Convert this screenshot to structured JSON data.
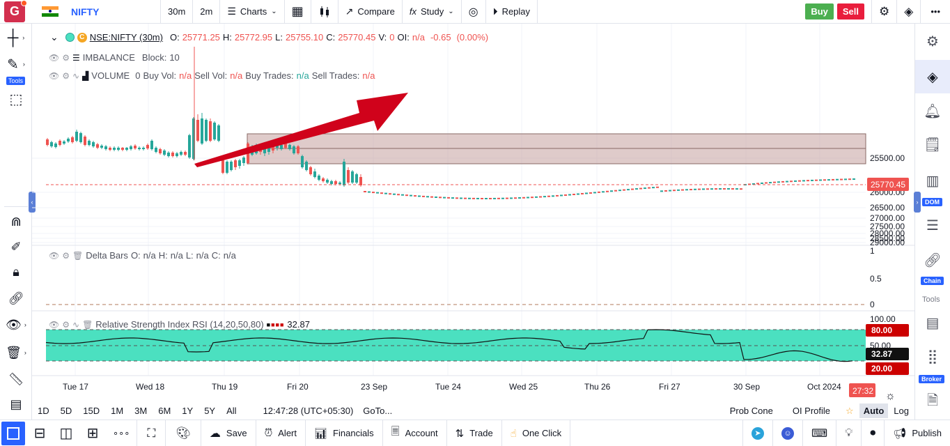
{
  "topbar": {
    "logo": "G",
    "symbol": "NIFTY",
    "interval": "30m",
    "interval2": "2m",
    "charts": "Charts",
    "compare": "Compare",
    "study": "Study",
    "replay": "Replay",
    "buy": "Buy",
    "sell": "Sell",
    "study_prefix": "fx"
  },
  "legend": {
    "symbol": "NSE:NIFTY (30m)",
    "o_label": "O:",
    "o": "25771.25",
    "h_label": "H:",
    "h": "25772.95",
    "l_label": "L:",
    "l": "25755.10",
    "c_label": "C:",
    "c": "25770.45",
    "v_label": "V:",
    "v": "0",
    "oi_label": "OI:",
    "oi": "n/a",
    "change": "-0.65",
    "change_pct": "(0.00%)"
  },
  "indicators": {
    "imbalance": "IMBALANCE",
    "block_label": "Block:",
    "block": "10",
    "volume": "VOLUME",
    "volume_val": "0",
    "buy_vol_label": "Buy Vol:",
    "buy_vol": "n/a",
    "sell_vol_label": "Sell Vol:",
    "sell_vol": "n/a",
    "buy_trades_label": "Buy Trades:",
    "buy_trades": "n/a",
    "sell_trades_label": "Sell Trades:",
    "sell_trades": "n/a",
    "delta": "Delta Bars",
    "delta_o_label": "O:",
    "delta_o": "n/a",
    "delta_h_label": "H:",
    "delta_h": "n/a",
    "delta_l_label": "L:",
    "delta_l": "n/a",
    "delta_c_label": "C:",
    "delta_c": "n/a",
    "rsi": "Relative Strength Index RSI (14,20,50,80)",
    "rsi_val": "32.87"
  },
  "price_axis": [
    "25500.00",
    "26000.00",
    "26500.00",
    "27000.00",
    "27500.00",
    "28000.00",
    "28500.00",
    "29000.00"
  ],
  "price_current": "25770.45",
  "delta_axis": [
    "1",
    "0.5",
    "0"
  ],
  "rsi_axis": [
    "100.00",
    "50.00"
  ],
  "rsi_badges": {
    "upper": "80.00",
    "value": "32.87",
    "lower": "20.00"
  },
  "time_axis": [
    "Tue 17",
    "Wed 18",
    "Thu 19",
    "Fri 20",
    "23 Sep",
    "Tue 24",
    "Wed 25",
    "Thu 26",
    "Fri 27",
    "30 Sep",
    "Oct 2024"
  ],
  "countdown": "27:32",
  "range": [
    "1D",
    "5D",
    "15D",
    "1M",
    "3M",
    "6M",
    "1Y",
    "5Y",
    "All"
  ],
  "clock": "12:47:28 (UTC+05:30)",
  "goto": "GoTo...",
  "right_range": {
    "prob_cone": "Prob Cone",
    "oi_profile": "OI Profile",
    "auto": "Auto",
    "log": "Log"
  },
  "left_toolbar": {
    "tools_badge": "Tools"
  },
  "right_toolbar": {
    "dom": "DOM",
    "chain": "Chain",
    "tools": "Tools",
    "broker": "Broker"
  },
  "bottombar": {
    "save": "Save",
    "alert": "Alert",
    "financials": "Financials",
    "account": "Account",
    "trade": "Trade",
    "one_click": "One Click",
    "publish": "Publish"
  },
  "colors": {
    "accent": "#2962ff",
    "up": "#26a69a",
    "down": "#ef5350",
    "rsi_fill": "#4be0c0",
    "zone": "#c9a9a6",
    "arrow": "#d0021b"
  }
}
